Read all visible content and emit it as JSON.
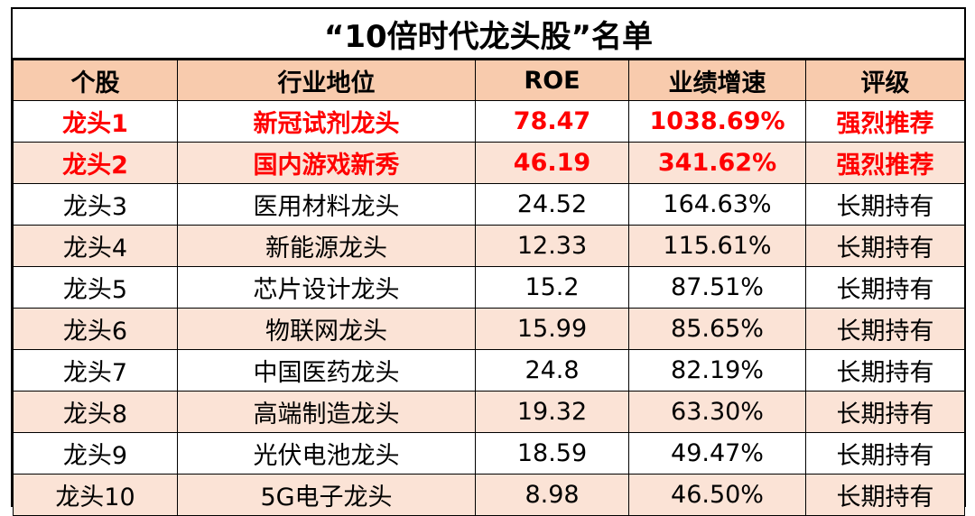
{
  "title": "“10倍时代龙头股”名单",
  "headers": [
    "个股",
    "行业地位",
    "ROE",
    "业绩增速",
    "评级"
  ],
  "rows": [
    [
      "龙头1",
      "新冠试剂龙头",
      "78.47",
      "1038.69%",
      "强烈推荐"
    ],
    [
      "龙头2",
      "国内游戏新秀",
      "46.19",
      "341.62%",
      "强烈推荐"
    ],
    [
      "龙头3",
      "医用材料龙头",
      "24.52",
      "164.63%",
      "长期持有"
    ],
    [
      "龙头4",
      "新能源龙头",
      "12.33",
      "115.61%",
      "长期持有"
    ],
    [
      "龙头5",
      "芯片设计龙头",
      "15.2",
      "87.51%",
      "长期持有"
    ],
    [
      "龙头6",
      "物联网龙头",
      "15.99",
      "85.65%",
      "长期持有"
    ],
    [
      "龙头7",
      "中国医药龙头",
      "24.8",
      "82.19%",
      "长期持有"
    ],
    [
      "龙头8",
      "高端制造龙头",
      "19.32",
      "63.30%",
      "长期持有"
    ],
    [
      "龙头9",
      "光伏电池龙头",
      "18.59",
      "49.47%",
      "长期持有"
    ],
    [
      "龙头10",
      "5G电子龙头",
      "8.98",
      "46.50%",
      "长期持有"
    ]
  ],
  "colors": {
    "header_bg": "#f8cbad",
    "shade_bg": "#fbe3d6",
    "highlight_text": "#ff0000"
  }
}
